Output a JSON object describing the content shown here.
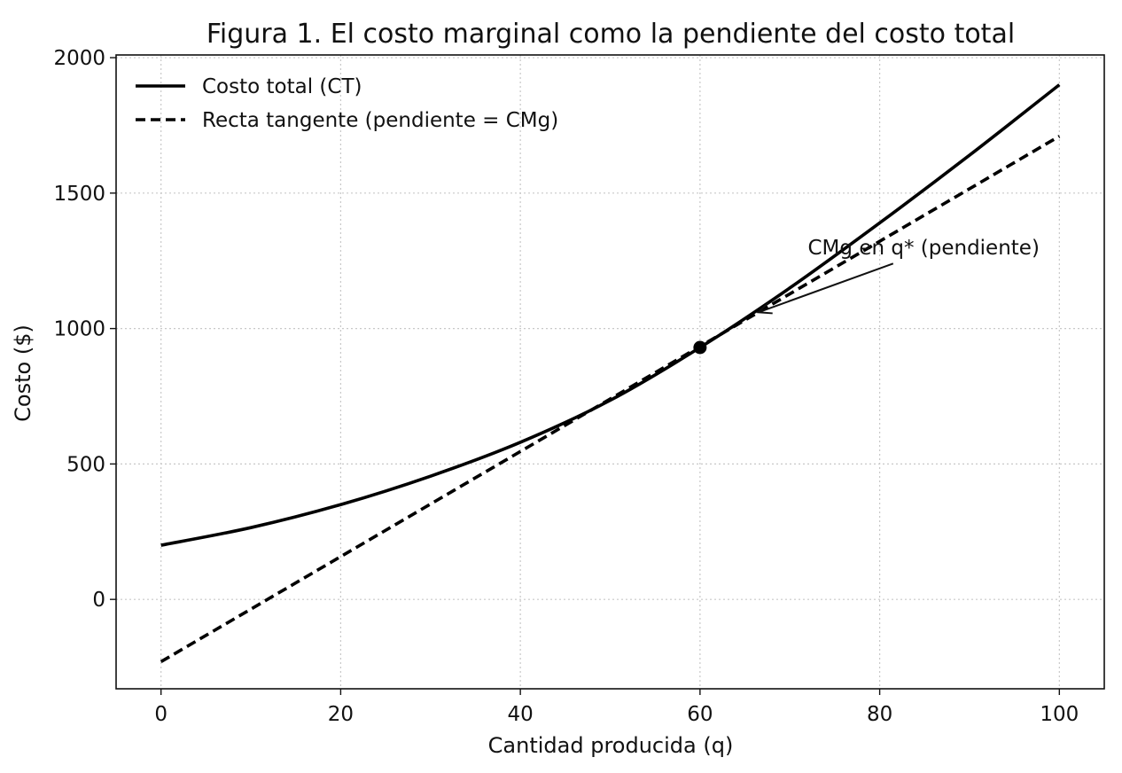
{
  "chart_data": {
    "type": "line",
    "title": "Figura 1. El costo marginal como la pendiente del costo total",
    "xlabel": "Cantidad producida (q)",
    "ylabel": "Costo ($)",
    "xlim": [
      -5,
      105
    ],
    "ylim": [
      -330,
      2010
    ],
    "xticks": [
      0,
      20,
      40,
      60,
      80,
      100
    ],
    "yticks": [
      0,
      500,
      1000,
      1500,
      2000
    ],
    "grid": true,
    "legend_position": "top-left",
    "series": [
      {
        "name": "Costo total (CT)",
        "style": "solid",
        "color": "#000000",
        "x": [
          0,
          10,
          20,
          30,
          40,
          50,
          60,
          70,
          80,
          90,
          100
        ],
        "y": [
          200,
          265,
          350,
          455,
          580,
          735,
          930,
          1150,
          1390,
          1640,
          1900
        ]
      },
      {
        "name": "Recta tangente (pendiente = CMg)",
        "style": "dashed",
        "color": "#000000",
        "x": [
          0,
          100
        ],
        "y": [
          -230,
          1710
        ]
      }
    ],
    "point": {
      "x": 60,
      "y": 930
    },
    "annotation": {
      "text": "CMg en q* (pendiente)",
      "text_x": 72,
      "text_y": 1300,
      "arrow_from": [
        81.5,
        1240
      ],
      "arrow_to": [
        66.5,
        1060
      ]
    }
  }
}
